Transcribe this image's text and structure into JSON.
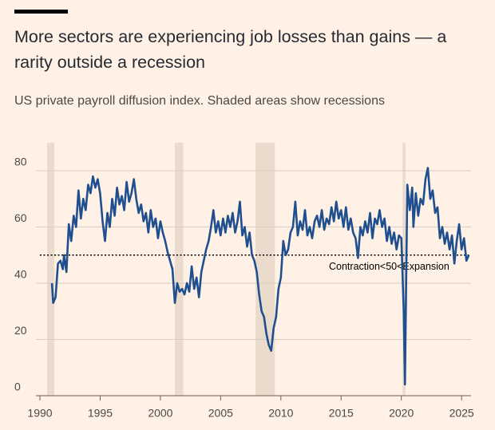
{
  "chart_data": {
    "type": "line",
    "title": "More sectors are experiencing job losses than gains — a rarity outside a recession",
    "subtitle": "US private payroll diffusion index. Shaded areas show recessions",
    "annotation": "Contraction<50<Expansion",
    "reference_line": 50,
    "color": "#1f4f8e",
    "recession_color": "#eadbcd",
    "grid": true,
    "recessions": [
      [
        1990.6,
        1991.2
      ],
      [
        2001.2,
        2001.9
      ],
      [
        2007.9,
        2009.5
      ],
      [
        2020.1,
        2020.35
      ]
    ],
    "xlim": [
      1990,
      2025.7
    ],
    "xticks": [
      1990,
      1995,
      2000,
      2005,
      2010,
      2015,
      2020,
      2025
    ],
    "ylim": [
      0,
      90
    ],
    "yticks": [
      0,
      20,
      40,
      60,
      80
    ],
    "x": [
      1991.0,
      1991.1,
      1991.3,
      1991.5,
      1991.7,
      1991.9,
      1992.0,
      1992.2,
      1992.4,
      1992.6,
      1992.8,
      1993.0,
      1993.2,
      1993.4,
      1993.6,
      1993.8,
      1994.0,
      1994.2,
      1994.4,
      1994.6,
      1994.8,
      1995.0,
      1995.2,
      1995.4,
      1995.6,
      1995.8,
      1996.0,
      1996.2,
      1996.4,
      1996.6,
      1996.8,
      1997.0,
      1997.2,
      1997.4,
      1997.6,
      1997.8,
      1998.0,
      1998.2,
      1998.4,
      1998.6,
      1998.8,
      1999.0,
      1999.2,
      1999.4,
      1999.6,
      1999.8,
      2000.0,
      2000.2,
      2000.4,
      2000.6,
      2000.8,
      2001.0,
      2001.2,
      2001.4,
      2001.6,
      2001.8,
      2002.0,
      2002.2,
      2002.4,
      2002.6,
      2002.8,
      2003.0,
      2003.2,
      2003.4,
      2003.6,
      2003.8,
      2004.0,
      2004.2,
      2004.4,
      2004.6,
      2004.8,
      2005.0,
      2005.2,
      2005.4,
      2005.6,
      2005.8,
      2006.0,
      2006.2,
      2006.4,
      2006.6,
      2006.8,
      2007.0,
      2007.2,
      2007.4,
      2007.6,
      2007.8,
      2008.0,
      2008.2,
      2008.4,
      2008.6,
      2008.8,
      2009.0,
      2009.2,
      2009.4,
      2009.6,
      2009.8,
      2010.0,
      2010.2,
      2010.4,
      2010.6,
      2010.8,
      2011.0,
      2011.2,
      2011.4,
      2011.6,
      2011.8,
      2012.0,
      2012.2,
      2012.4,
      2012.6,
      2012.8,
      2013.0,
      2013.2,
      2013.4,
      2013.6,
      2013.8,
      2014.0,
      2014.2,
      2014.4,
      2014.6,
      2014.8,
      2015.0,
      2015.2,
      2015.4,
      2015.6,
      2015.8,
      2016.0,
      2016.2,
      2016.4,
      2016.6,
      2016.8,
      2017.0,
      2017.2,
      2017.4,
      2017.6,
      2017.8,
      2018.0,
      2018.2,
      2018.4,
      2018.6,
      2018.8,
      2019.0,
      2019.2,
      2019.4,
      2019.6,
      2019.8,
      2020.0,
      2020.2,
      2020.3,
      2020.4,
      2020.5,
      2020.7,
      2020.9,
      2021.0,
      2021.2,
      2021.4,
      2021.6,
      2021.8,
      2022.0,
      2022.2,
      2022.4,
      2022.6,
      2022.8,
      2023.0,
      2023.2,
      2023.4,
      2023.6,
      2023.8,
      2024.0,
      2024.2,
      2024.4,
      2024.6,
      2024.8,
      2025.0,
      2025.2,
      2025.4,
      2025.6
    ],
    "values": [
      40,
      33,
      35,
      47,
      48,
      45,
      50,
      44,
      61,
      55,
      64,
      60,
      73,
      63,
      70,
      66,
      75,
      72,
      78,
      74,
      77,
      72,
      62,
      55,
      65,
      60,
      70,
      64,
      74,
      68,
      71,
      66,
      76,
      69,
      72,
      77,
      70,
      65,
      68,
      62,
      65,
      58,
      66,
      60,
      63,
      56,
      62,
      58,
      55,
      51,
      48,
      45,
      33,
      40,
      37,
      38,
      36,
      40,
      37,
      46,
      38,
      42,
      35,
      44,
      48,
      52,
      55,
      60,
      66,
      58,
      62,
      57,
      63,
      58,
      64,
      60,
      65,
      58,
      62,
      69,
      57,
      60,
      53,
      58,
      50,
      48,
      44,
      36,
      30,
      28,
      22,
      18,
      16,
      24,
      28,
      38,
      42,
      55,
      50,
      52,
      58,
      60,
      69,
      57,
      62,
      59,
      66,
      57,
      60,
      56,
      62,
      64,
      60,
      66,
      59,
      63,
      61,
      67,
      62,
      69,
      63,
      66,
      60,
      67,
      59,
      63,
      58,
      56,
      49,
      60,
      57,
      62,
      58,
      65,
      56,
      63,
      61,
      66,
      60,
      63,
      55,
      60,
      54,
      58,
      52,
      57,
      56,
      30,
      4,
      40,
      75,
      66,
      74,
      60,
      72,
      64,
      70,
      68,
      77,
      81,
      70,
      73,
      65,
      67,
      56,
      60,
      54,
      58,
      52,
      57,
      47,
      55,
      61,
      52,
      56,
      48,
      50
    ]
  }
}
